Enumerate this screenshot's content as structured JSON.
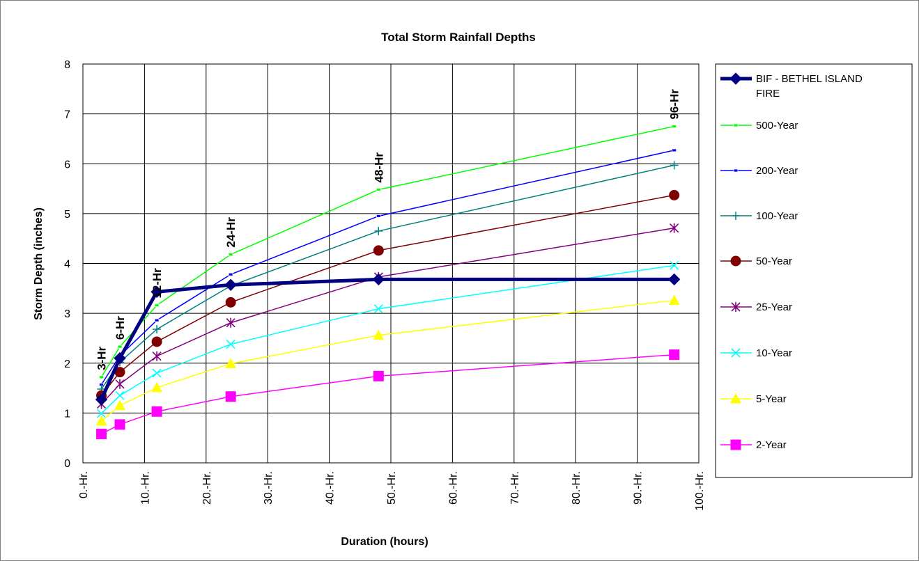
{
  "chart_data": {
    "type": "line",
    "title": "Total Storm Rainfall Depths",
    "xlabel": "Duration (hours)",
    "ylabel": "Storm Depth (inches)",
    "xlim": [
      0,
      100
    ],
    "ylim": [
      0,
      8
    ],
    "x_ticks": [
      {
        "value": 0,
        "label": "0.-Hr."
      },
      {
        "value": 10,
        "label": "10.-Hr."
      },
      {
        "value": 20,
        "label": "20.-Hr."
      },
      {
        "value": 30,
        "label": "30.-Hr."
      },
      {
        "value": 40,
        "label": "40.-Hr."
      },
      {
        "value": 50,
        "label": "50.-Hr."
      },
      {
        "value": 60,
        "label": "60.-Hr."
      },
      {
        "value": 70,
        "label": "70.-Hr."
      },
      {
        "value": 80,
        "label": "80.-Hr."
      },
      {
        "value": 90,
        "label": "90.-Hr."
      },
      {
        "value": 100,
        "label": "100.-Hr."
      }
    ],
    "y_ticks": [
      0,
      1,
      2,
      3,
      4,
      5,
      6,
      7,
      8
    ],
    "grid": true,
    "legend": "right",
    "x": [
      3,
      6,
      12,
      24,
      48,
      96
    ],
    "duration_labels": [
      {
        "x": 3,
        "y": 1.72,
        "text": "3-Hr"
      },
      {
        "x": 6,
        "y": 2.33,
        "text": "6-Hr"
      },
      {
        "x": 12,
        "y": 3.16,
        "text": "12-Hr"
      },
      {
        "x": 24,
        "y": 4.18,
        "text": "24-Hr"
      },
      {
        "x": 48,
        "y": 5.48,
        "text": "48-Hr"
      },
      {
        "x": 96,
        "y": 6.75,
        "text": "96-Hr"
      }
    ],
    "series": [
      {
        "name": "BIF - BETHEL ISLAND FIRE",
        "color": "#000080",
        "marker": "diamond",
        "width": 5,
        "values": [
          1.27,
          2.1,
          3.43,
          3.57,
          3.68,
          3.68
        ]
      },
      {
        "name": "500-Year",
        "color": "#00FF00",
        "marker": "dash",
        "width": 1.5,
        "values": [
          1.72,
          2.33,
          3.16,
          4.18,
          5.48,
          6.75
        ]
      },
      {
        "name": "200-Year",
        "color": "#0000FF",
        "marker": "dash",
        "width": 1.5,
        "values": [
          1.57,
          2.15,
          2.86,
          3.78,
          4.95,
          6.27
        ]
      },
      {
        "name": "100-Year",
        "color": "#008080",
        "marker": "plus",
        "width": 1.5,
        "values": [
          1.48,
          2.02,
          2.68,
          3.55,
          4.65,
          5.97
        ]
      },
      {
        "name": "50-Year",
        "color": "#800000",
        "marker": "circle",
        "width": 1.5,
        "values": [
          1.35,
          1.82,
          2.43,
          3.22,
          4.26,
          5.37
        ]
      },
      {
        "name": "25-Year",
        "color": "#800080",
        "marker": "star",
        "width": 1.5,
        "values": [
          1.18,
          1.58,
          2.14,
          2.81,
          3.73,
          4.71
        ]
      },
      {
        "name": "10-Year",
        "color": "#00FFFF",
        "marker": "x",
        "width": 1.5,
        "values": [
          0.99,
          1.35,
          1.8,
          2.38,
          3.09,
          3.96
        ]
      },
      {
        "name": "5-Year",
        "color": "#FFFF00",
        "marker": "triangle",
        "width": 1.5,
        "values": [
          0.84,
          1.15,
          1.51,
          1.99,
          2.56,
          3.26
        ]
      },
      {
        "name": "2-Year",
        "color": "#FF00FF",
        "marker": "square",
        "width": 1.5,
        "values": [
          0.58,
          0.77,
          1.03,
          1.33,
          1.74,
          2.17
        ]
      }
    ]
  }
}
